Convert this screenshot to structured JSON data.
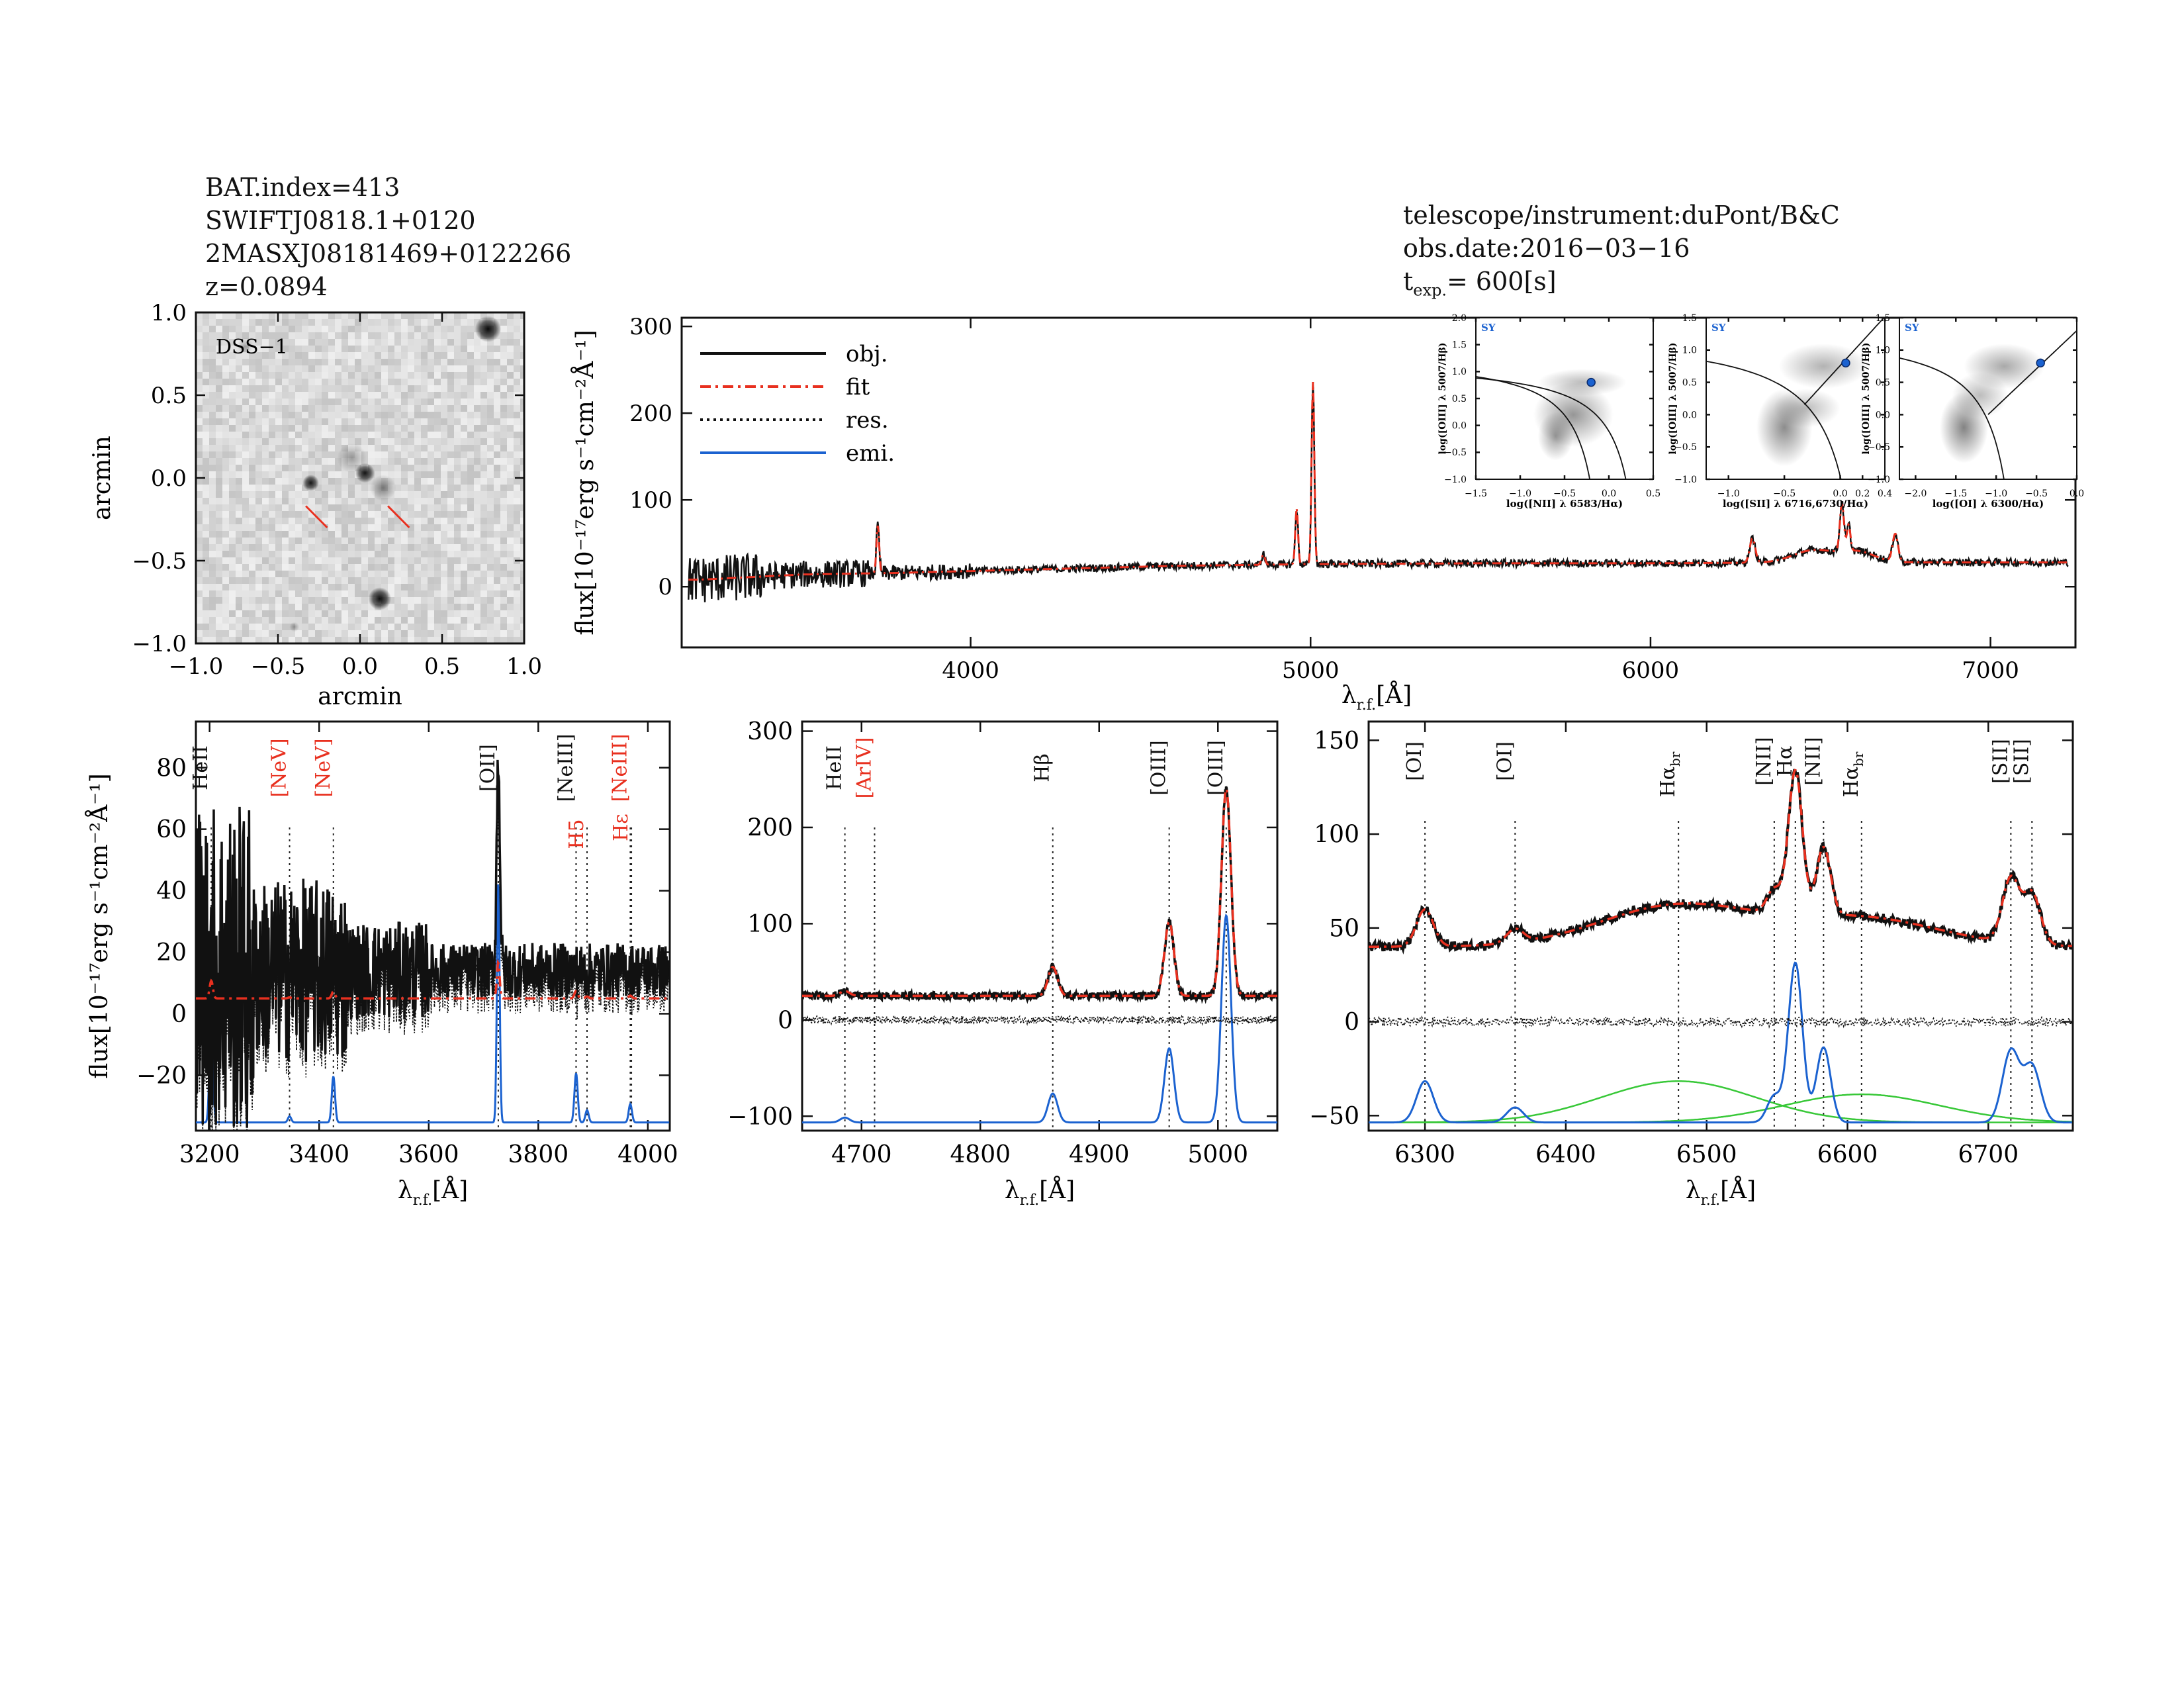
{
  "header_left": {
    "bat_index": "BAT.index=413",
    "swift_name": "SWIFTJ0818.1+0120",
    "counterpart": "2MASXJ08181469+0122266",
    "redshift": "z=0.0894"
  },
  "header_right": {
    "telescope": "telescope/instrument:duPont/B&C",
    "obs_date": "obs.date:2016−03−16",
    "t_exp_prefix": "t",
    "t_exp_sub": "exp.",
    "t_exp_value": "= 600[s]"
  },
  "colors": {
    "obj": "#111111",
    "fit": "#e8301f",
    "res": "#111111",
    "emi": "#1b62d0",
    "broad": "#38c838",
    "line_label_red": "#e8301f"
  },
  "chart_data": [
    {
      "id": "dss_image",
      "type": "image",
      "label": "DSS−1",
      "xlabel": "arcmin",
      "ylabel": "arcmin",
      "xlim": [
        -1.0,
        1.0
      ],
      "ylim": [
        -1.0,
        1.0
      ],
      "xticks": [
        -1.0,
        -0.5,
        0.0,
        0.5,
        1.0
      ],
      "yticks": [
        -1.0,
        -0.5,
        0.0,
        0.5,
        1.0
      ],
      "xtick_labels": [
        "−1.0",
        "−0.5",
        "0.0",
        "0.5",
        "1.0"
      ],
      "ytick_labels": [
        "−1.0",
        "−0.5",
        "0.0",
        "0.5",
        "1.0"
      ],
      "sources": [
        {
          "x": 0.78,
          "y": 0.9,
          "r": 0.08,
          "i": 0.95
        },
        {
          "x": 0.03,
          "y": 0.03,
          "r": 0.06,
          "i": 0.9
        },
        {
          "x": -0.05,
          "y": 0.12,
          "r": 0.09,
          "i": 0.45
        },
        {
          "x": 0.14,
          "y": -0.06,
          "r": 0.08,
          "i": 0.55
        },
        {
          "x": -0.3,
          "y": -0.03,
          "r": 0.05,
          "i": 0.9
        },
        {
          "x": 0.12,
          "y": -0.73,
          "r": 0.07,
          "i": 0.95
        },
        {
          "x": -0.7,
          "y": 0.8,
          "r": 0.05,
          "i": 0.35
        },
        {
          "x": -0.4,
          "y": -0.9,
          "r": 0.03,
          "i": 0.4
        }
      ],
      "markers": [
        {
          "x1": -0.33,
          "y1": -0.17,
          "x2": -0.2,
          "y2": -0.3
        },
        {
          "x1": 0.17,
          "y1": -0.17,
          "x2": 0.3,
          "y2": -0.3
        }
      ]
    },
    {
      "id": "full_spectrum",
      "type": "line",
      "xlabel": "λ_r.f.[Å]",
      "ylabel": "flux[10⁻¹⁷erg s⁻¹cm⁻²Å⁻¹]",
      "xlim": [
        3150,
        7250
      ],
      "ylim": [
        -70,
        310
      ],
      "xticks": [
        4000,
        5000,
        6000,
        7000
      ],
      "yticks": [
        0,
        100,
        200,
        300
      ],
      "legend": [
        "obj.",
        "fit",
        "res.",
        "emi."
      ],
      "legend_position": "top-left",
      "continuum": [
        [
          3200,
          8
        ],
        [
          3500,
          14
        ],
        [
          3800,
          16
        ],
        [
          4200,
          20
        ],
        [
          4600,
          24
        ],
        [
          5000,
          26
        ],
        [
          5500,
          27
        ],
        [
          6000,
          27
        ],
        [
          6500,
          28
        ],
        [
          7000,
          28
        ],
        [
          7250,
          28
        ]
      ],
      "lines": [
        {
          "x": 3727,
          "a": 55,
          "s": 4
        },
        {
          "x": 4861,
          "a": 12,
          "s": 5
        },
        {
          "x": 4959,
          "a": 65,
          "s": 4
        },
        {
          "x": 5007,
          "a": 210,
          "s": 4
        },
        {
          "x": 6300,
          "a": 28,
          "s": 8
        },
        {
          "x": 6480,
          "a": 14,
          "s": 60
        },
        {
          "x": 6563,
          "a": 55,
          "s": 6
        },
        {
          "x": 6583,
          "a": 30,
          "s": 5
        },
        {
          "x": 6610,
          "a": 12,
          "s": 50
        },
        {
          "x": 6720,
          "a": 32,
          "s": 8
        }
      ]
    },
    {
      "id": "bpt_nii",
      "type": "scatter",
      "label": "SY",
      "xlabel": "log([NII] λ 6583/Hα)",
      "ylabel": "log([OIII] λ 5007/Hβ)",
      "xlim": [
        -1.5,
        0.5
      ],
      "ylim": [
        -1.0,
        2.0
      ],
      "xticks": [
        -1.5,
        -1.0,
        -0.5,
        0.0,
        0.5
      ],
      "yticks": [
        -1.0,
        -0.5,
        0.0,
        0.5,
        1.0,
        1.5,
        2.0
      ],
      "xtick_labels": [
        "−1.5",
        "−1.0",
        "−0.5",
        "0.0",
        "0.5"
      ],
      "ytick_labels": [
        "−1.0",
        "−0.5",
        "0.0",
        "0.5",
        "1.0",
        "1.5",
        "2.0"
      ],
      "point": {
        "x": -0.2,
        "y": 0.8
      }
    },
    {
      "id": "bpt_sii",
      "type": "scatter",
      "label": "SY",
      "xlabel": "log([SII] λ 6716,6730/Hα)",
      "ylabel": "log([OIII] λ 5007/Hβ)",
      "xlim": [
        -1.2,
        0.4
      ],
      "ylim": [
        -1.0,
        1.5
      ],
      "xticks": [
        -1.0,
        -0.5,
        0.0,
        0.2,
        0.4
      ],
      "yticks": [
        -1.0,
        -0.5,
        0.0,
        0.5,
        1.0,
        1.5
      ],
      "xtick_labels": [
        "−1.0",
        "−0.5",
        "0.0",
        "0.2",
        "0.4"
      ],
      "ytick_labels": [
        "−1.0",
        "−0.5",
        "0.0",
        "0.5",
        "1.0",
        "1.5"
      ],
      "point": {
        "x": 0.05,
        "y": 0.8
      }
    },
    {
      "id": "bpt_oi",
      "type": "scatter",
      "label": "SY",
      "xlabel": "log([OI] λ 6300/Hα)",
      "ylabel": "log([OIII] λ 5007/Hβ)",
      "xlim": [
        -2.2,
        0.0
      ],
      "ylim": [
        -1.0,
        1.5
      ],
      "xticks": [
        -2.0,
        -1.5,
        -1.0,
        -0.5,
        0.0
      ],
      "yticks": [
        -1.0,
        -0.5,
        0.0,
        0.5,
        1.0,
        1.5
      ],
      "xtick_labels": [
        "−2.0",
        "−1.5",
        "−1.0",
        "−0.5",
        "0.0"
      ],
      "ytick_labels": [
        "−1.0",
        "−0.5",
        "0.0",
        "0.5",
        "1.0",
        "1.5"
      ],
      "point": {
        "x": -0.45,
        "y": 0.8
      }
    },
    {
      "id": "zoom_blue",
      "type": "line",
      "xlabel": "λ_r.f.[Å]",
      "ylabel": "flux[10⁻¹⁷erg s⁻¹cm⁻²Å⁻¹]",
      "xlim": [
        3175,
        4040
      ],
      "ylim": [
        -38,
        95
      ],
      "xticks": [
        3200,
        3400,
        3600,
        3800,
        4000
      ],
      "yticks": [
        -20,
        0,
        20,
        40,
        60,
        80
      ],
      "ytick_labels": [
        "−20",
        "0",
        "20",
        "40",
        "60",
        "80"
      ],
      "line_labels": [
        {
          "x": 3203,
          "text": "HeII",
          "color": "black"
        },
        {
          "x": 3346,
          "text": "[NeV]",
          "color": "red"
        },
        {
          "x": 3426,
          "text": "[NeV]",
          "color": "red"
        },
        {
          "x": 3727,
          "text": "[OII]",
          "color": "black"
        },
        {
          "x": 3869,
          "text": "[NeIII]",
          "color": "black"
        },
        {
          "x": 3889,
          "text": "H5",
          "color": "red"
        },
        {
          "x": 3968,
          "text": "[NeIII]",
          "color": "red"
        },
        {
          "x": 3970,
          "text": "Hε",
          "color": "red"
        }
      ],
      "emission": [
        {
          "x": 3203,
          "a": 38,
          "s": 3
        },
        {
          "x": 3346,
          "a": 2,
          "s": 3
        },
        {
          "x": 3426,
          "a": 15,
          "s": 3
        },
        {
          "x": 3727,
          "a": 78,
          "s": 2.5
        },
        {
          "x": 3869,
          "a": 16,
          "s": 3
        },
        {
          "x": 3889,
          "a": 4,
          "s": 3
        },
        {
          "x": 3968,
          "a": 6,
          "s": 3
        }
      ],
      "fit_continuum": 5
    },
    {
      "id": "zoom_hbeta",
      "type": "line",
      "xlabel": "λ_r.f.[Å]",
      "ylabel": "",
      "xlim": [
        4650,
        5050
      ],
      "ylim": [
        -115,
        310
      ],
      "xticks": [
        4700,
        4800,
        4900,
        5000
      ],
      "yticks": [
        -100,
        0,
        100,
        200,
        300
      ],
      "ytick_labels": [
        "−100",
        "0",
        "100",
        "200",
        "300"
      ],
      "line_labels": [
        {
          "x": 4686,
          "text": "HeII",
          "color": "black"
        },
        {
          "x": 4711,
          "text": "[ArIV]",
          "color": "red"
        },
        {
          "x": 4861,
          "text": "Hβ",
          "color": "black"
        },
        {
          "x": 4959,
          "text": "[OIII]",
          "color": "black"
        },
        {
          "x": 5007,
          "text": "[OIII]",
          "color": "black"
        }
      ],
      "emission": [
        {
          "x": 4686,
          "a": 5,
          "s": 4
        },
        {
          "x": 4861,
          "a": 30,
          "s": 4
        },
        {
          "x": 4959,
          "a": 77,
          "s": 4
        },
        {
          "x": 5007,
          "a": 215,
          "s": 4
        }
      ],
      "fit_continuum": 25
    },
    {
      "id": "zoom_halpha",
      "type": "line",
      "xlabel": "λ_r.f.[Å]",
      "ylabel": "",
      "xlim": [
        6260,
        6760
      ],
      "ylim": [
        -58,
        160
      ],
      "xticks": [
        6300,
        6400,
        6500,
        6600,
        6700
      ],
      "yticks": [
        -50,
        0,
        50,
        100,
        150
      ],
      "ytick_labels": [
        "−50",
        "0",
        "50",
        "100",
        "150"
      ],
      "line_labels": [
        {
          "x": 6300,
          "text": "[OI]",
          "color": "black"
        },
        {
          "x": 6364,
          "text": "[OI]",
          "color": "black"
        },
        {
          "x": 6480,
          "text": "Hα_br",
          "color": "black"
        },
        {
          "x": 6548,
          "text": "[NII]",
          "color": "black"
        },
        {
          "x": 6563,
          "text": "Hα",
          "color": "black"
        },
        {
          "x": 6583,
          "text": "[NII]",
          "color": "black"
        },
        {
          "x": 6610,
          "text": "Hα_br",
          "color": "black"
        },
        {
          "x": 6716,
          "text": "[SII]",
          "color": "black"
        },
        {
          "x": 6731,
          "text": "[SII]",
          "color": "black"
        }
      ],
      "emission": [
        {
          "x": 6300,
          "a": 22,
          "s": 6
        },
        {
          "x": 6364,
          "a": 8,
          "s": 6
        },
        {
          "x": 6548,
          "a": 14,
          "s": 5
        },
        {
          "x": 6563,
          "a": 85,
          "s": 5
        },
        {
          "x": 6583,
          "a": 40,
          "s": 5
        },
        {
          "x": 6716,
          "a": 38,
          "s": 6
        },
        {
          "x": 6731,
          "a": 30,
          "s": 6
        }
      ],
      "broad": [
        {
          "x": 6480,
          "a": 22,
          "s": 55
        },
        {
          "x": 6610,
          "a": 15,
          "s": 55
        }
      ],
      "fit_continuum": 40
    }
  ]
}
